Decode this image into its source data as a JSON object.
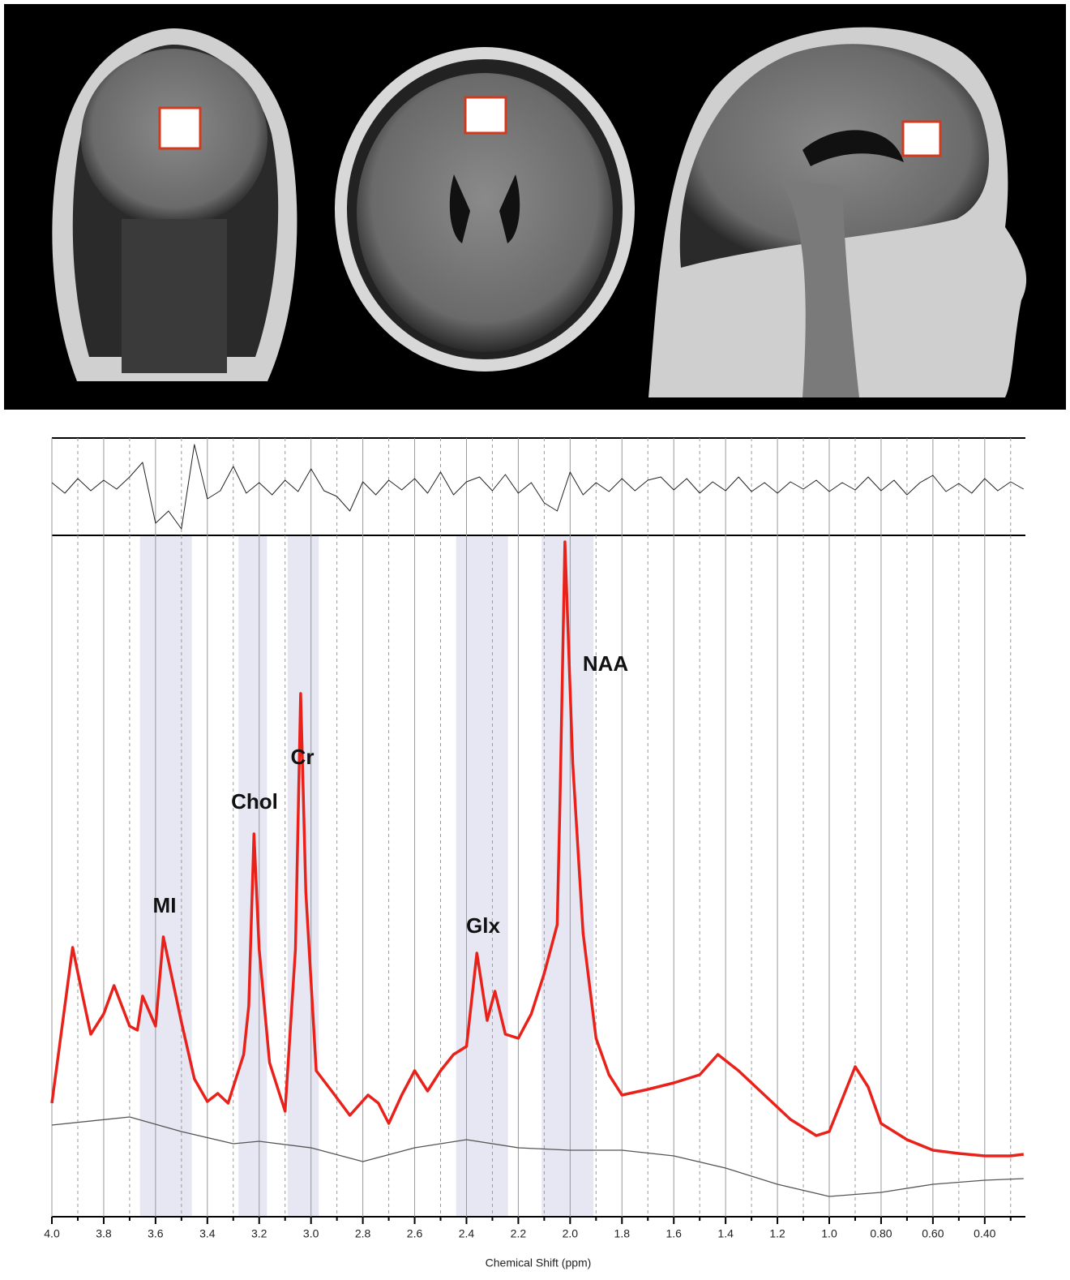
{
  "chart_data": {
    "type": "line",
    "x_label": "Chemical Shift (ppm)",
    "xlim": [
      4.0,
      0.243
    ],
    "ylim": [
      0,
      835
    ],
    "grid": true,
    "xticks": [
      {
        "value": 4,
        "label": "4.0"
      },
      3.8,
      3.6,
      3.4,
      3.2,
      {
        "value": 3,
        "label": "3.0"
      },
      2.8,
      2.6,
      2.4,
      2.2,
      {
        "value": 2,
        "label": "2.0"
      },
      1.8,
      1.6,
      1.4,
      1.2,
      {
        "value": 1,
        "label": "1.0"
      },
      {
        "value": 0.8,
        "label": "0.80"
      },
      {
        "value": 0.6,
        "label": "0.60"
      },
      {
        "value": 0.4,
        "label": "0.40"
      }
    ],
    "minor_xticks": [
      3.9,
      3.7,
      3.5,
      3.3,
      3.1,
      2.9,
      2.7,
      2.5,
      2.3,
      2.1,
      1.9,
      1.7,
      1.5,
      1.3,
      1.1,
      0.9,
      0.7,
      0.5,
      0.3
    ],
    "regions": [
      [
        3.66,
        3.46
      ],
      [
        3.28,
        3.17
      ],
      [
        3.09,
        2.97
      ],
      [
        2.44,
        2.24
      ],
      [
        2.11,
        1.91
      ]
    ],
    "region_color": "#e6e7f2",
    "annotations": [
      "MI",
      "Chol",
      "Cr",
      "Glx",
      "NAA"
    ],
    "spectrum": {
      "color": "#e8221b",
      "x": [
        4.0,
        3.95,
        3.92,
        3.88,
        3.85,
        3.8,
        3.76,
        3.73,
        3.7,
        3.67,
        3.65,
        3.6,
        3.57,
        3.5,
        3.45,
        3.4,
        3.36,
        3.32,
        3.26,
        3.24,
        3.22,
        3.2,
        3.16,
        3.1,
        3.06,
        3.04,
        3.02,
        2.98,
        2.92,
        2.85,
        2.78,
        2.74,
        2.7,
        2.65,
        2.6,
        2.55,
        2.5,
        2.45,
        2.4,
        2.36,
        2.32,
        2.29,
        2.25,
        2.2,
        2.15,
        2.1,
        2.05,
        2.04,
        2.02,
        1.99,
        1.95,
        1.9,
        1.85,
        1.8,
        1.7,
        1.6,
        1.5,
        1.43,
        1.35,
        1.25,
        1.15,
        1.05,
        1.0,
        0.95,
        0.9,
        0.85,
        0.8,
        0.7,
        0.6,
        0.5,
        0.4,
        0.3,
        0.25
      ],
      "values": [
        140,
        260,
        332,
        270,
        225,
        250,
        285,
        260,
        235,
        230,
        272,
        235,
        345,
        240,
        170,
        142,
        152,
        140,
        200,
        260,
        472,
        330,
        190,
        130,
        330,
        645,
        400,
        180,
        155,
        125,
        150,
        140,
        115,
        150,
        180,
        155,
        180,
        200,
        210,
        325,
        242,
        278,
        225,
        220,
        250,
        300,
        360,
        500,
        832,
        560,
        350,
        220,
        175,
        150,
        157,
        165,
        175,
        200,
        180,
        150,
        120,
        100,
        105,
        145,
        185,
        160,
        115,
        95,
        82,
        78,
        75,
        75,
        77
      ]
    },
    "baseline": {
      "color": "#555555",
      "x": [
        4.0,
        3.7,
        3.5,
        3.3,
        3.2,
        3.0,
        2.8,
        2.6,
        2.4,
        2.2,
        2.0,
        1.8,
        1.6,
        1.4,
        1.2,
        1.0,
        0.8,
        0.6,
        0.4,
        0.25
      ],
      "values": [
        113,
        123,
        105,
        90,
        93,
        85,
        68,
        85,
        95,
        85,
        82,
        82,
        75,
        60,
        40,
        25,
        30,
        40,
        45,
        47
      ]
    },
    "residual": {
      "color": "#222222",
      "ylim": [
        -60,
        60
      ],
      "x": [
        4.0,
        3.95,
        3.9,
        3.85,
        3.8,
        3.75,
        3.7,
        3.65,
        3.6,
        3.55,
        3.5,
        3.45,
        3.4,
        3.35,
        3.3,
        3.25,
        3.2,
        3.15,
        3.1,
        3.05,
        3.0,
        2.95,
        2.9,
        2.85,
        2.8,
        2.75,
        2.7,
        2.65,
        2.6,
        2.55,
        2.5,
        2.45,
        2.4,
        2.35,
        2.3,
        2.25,
        2.2,
        2.15,
        2.1,
        2.05,
        2.0,
        1.95,
        1.9,
        1.85,
        1.8,
        1.75,
        1.7,
        1.65,
        1.6,
        1.55,
        1.5,
        1.45,
        1.4,
        1.35,
        1.3,
        1.25,
        1.2,
        1.15,
        1.1,
        1.05,
        1.0,
        0.95,
        0.9,
        0.85,
        0.8,
        0.75,
        0.7,
        0.65,
        0.6,
        0.55,
        0.5,
        0.45,
        0.4,
        0.35,
        0.3,
        0.25
      ],
      "values": [
        5,
        -8,
        10,
        -5,
        8,
        -3,
        12,
        30,
        -45,
        -30,
        -52,
        52,
        -15,
        -5,
        25,
        -8,
        5,
        -10,
        8,
        -6,
        22,
        -5,
        -12,
        -30,
        6,
        -10,
        8,
        -4,
        10,
        -8,
        18,
        -10,
        6,
        12,
        -5,
        15,
        -8,
        5,
        -20,
        -30,
        18,
        -10,
        5,
        -6,
        10,
        -5,
        8,
        12,
        -4,
        10,
        -8,
        6,
        -5,
        12,
        -6,
        5,
        -8,
        6,
        -3,
        8,
        -6,
        5,
        -4,
        12,
        -5,
        8,
        -10,
        5,
        14,
        -6,
        4,
        -8,
        10,
        -5,
        6,
        -3
      ]
    }
  }
}
